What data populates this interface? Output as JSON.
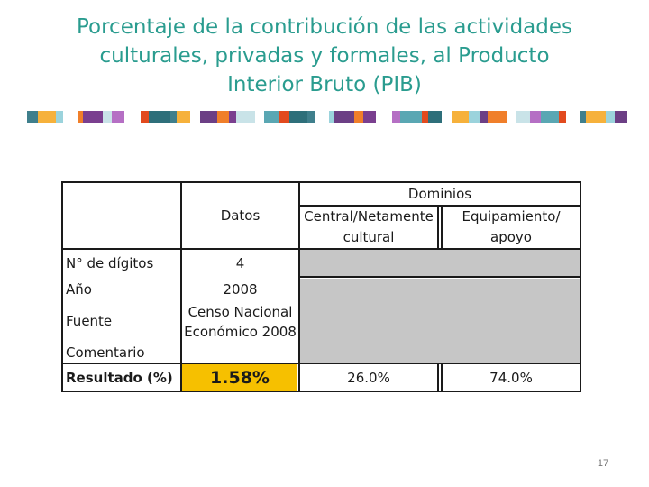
{
  "slide": {
    "title_lines": [
      "Porcentaje de la contribución de las actividades",
      "culturales, privadas y formales, al Producto",
      "Interior Bruto (PIB)"
    ],
    "page_number": "17"
  },
  "table": {
    "header": {
      "datos": "Datos",
      "dominios": "Dominios",
      "central": [
        "Central/Netamente",
        "cultural"
      ],
      "equipamiento": [
        "Equipamiento/",
        "apoyo"
      ]
    },
    "rows": {
      "digitos": {
        "label": "N° de dígitos",
        "value": "4"
      },
      "anio": {
        "label": "Año",
        "value": "2008"
      },
      "fuente": {
        "label": "Fuente",
        "value": [
          "Censo Nacional",
          "Económico 2008"
        ]
      },
      "comentario": {
        "label": "Comentario",
        "value": ""
      },
      "resultado": {
        "label": "Resultado (%)",
        "value": "1.58%",
        "central": "26.0%",
        "equipamiento": "74.0%"
      }
    },
    "colors": {
      "highlight": "#f6c000",
      "shaded": "#c6c6c6",
      "title": "#2a9c8f"
    }
  }
}
